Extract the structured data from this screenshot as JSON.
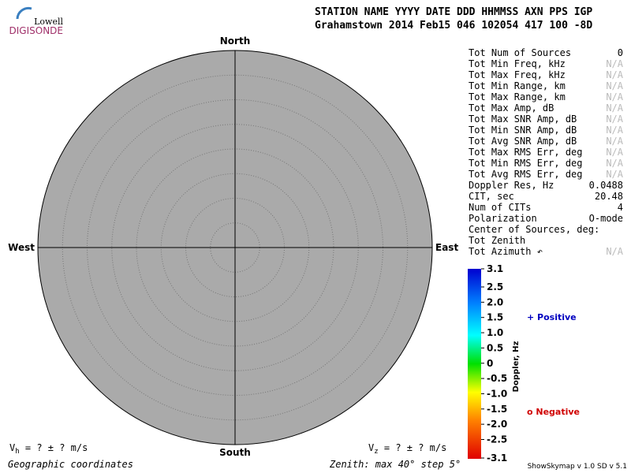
{
  "logo": {
    "top": "Lowell",
    "bottom": "DIGISONDE"
  },
  "header": {
    "line1": "STATION NAME    YYYY DATE  DDD HHMMSS AXN PPS IGP",
    "line2": "Grahamstown     2014 Feb15 046 102054 417 100 -8D"
  },
  "compass": {
    "north": "North",
    "south": "South",
    "east": "East",
    "west": "West"
  },
  "stats": [
    [
      "Tot Num of Sources",
      "0"
    ],
    [
      "Tot Min Freq, kHz",
      "N/A"
    ],
    [
      "Tot Max Freq, kHz",
      "N/A"
    ],
    [
      "Tot Min Range, km",
      "N/A"
    ],
    [
      "Tot Max Range, km",
      "N/A"
    ],
    [
      "Tot Max Amp, dB",
      "N/A"
    ],
    [
      "Tot Max SNR Amp, dB",
      "N/A"
    ],
    [
      "Tot Min SNR Amp, dB",
      "N/A"
    ],
    [
      "Tot Avg SNR Amp, dB",
      "N/A"
    ],
    [
      "Tot Max RMS Err, deg",
      "N/A"
    ],
    [
      "Tot Min RMS Err, deg",
      "N/A"
    ],
    [
      "Tot Avg RMS Err, deg",
      "N/A"
    ],
    [
      "Doppler Res, Hz",
      "0.0488"
    ],
    [
      "CIT, sec",
      "20.48"
    ],
    [
      "Num of CITs",
      "4"
    ],
    [
      "Polarization",
      "O-mode"
    ],
    [
      "Center of Sources, deg:"
    ],
    [
      "Tot          Zenith"
    ],
    [
      "Tot          Azimuth ↶",
      "N/A"
    ]
  ],
  "colorbar": {
    "title": "Doppler, Hz",
    "ticks": [
      "3.1",
      "2.5",
      "2.0",
      "1.5",
      "1.0",
      "0.5",
      "0",
      "-0.5",
      "-1.0",
      "-1.5",
      "-2.0",
      "-2.5",
      "-3.1"
    ]
  },
  "legend": {
    "positive": "+ Positive",
    "negative": "o Negative"
  },
  "footer": {
    "vh": [
      "V",
      "h",
      " =  ? ±  ? m/s"
    ],
    "vz": [
      "V",
      "z",
      " =  ? ±  ? m/s"
    ],
    "coords": "Geographic coordinates",
    "zenith": "Zenith: max 40°  step 5°",
    "version": "ShowSkymap v 1.0  SD v 5.1"
  }
}
